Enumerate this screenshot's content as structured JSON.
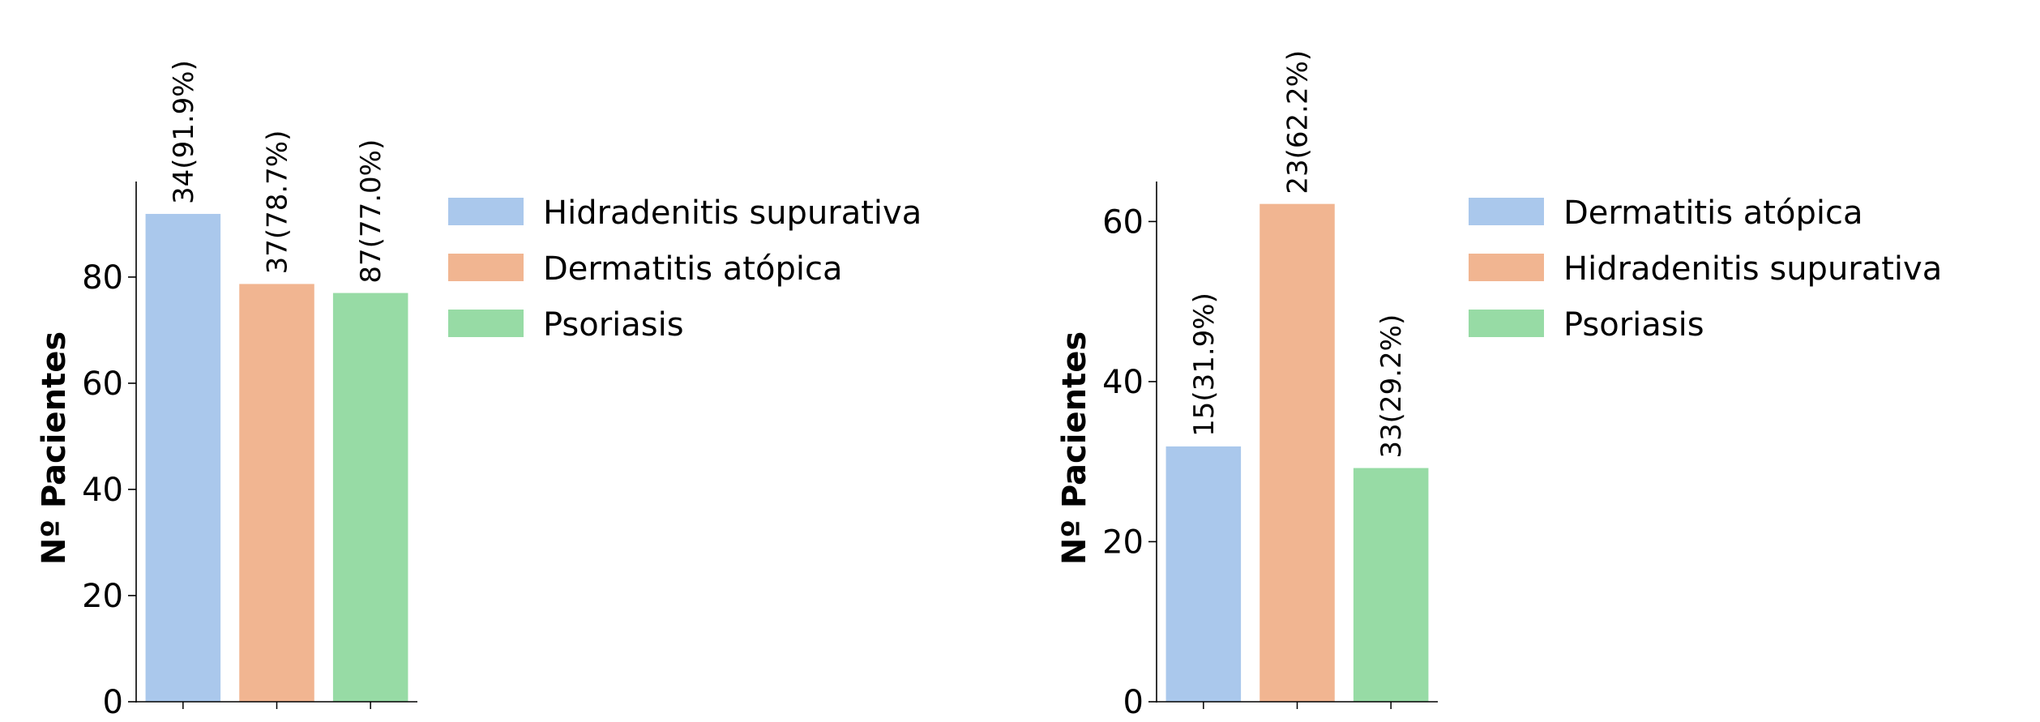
{
  "chart_data": [
    {
      "type": "bar",
      "title": "",
      "xlabel": "",
      "ylabel": "Nº Pacientes",
      "ylim": [
        0,
        98
      ],
      "yticks": [
        0,
        20,
        40,
        60,
        80
      ],
      "grid": false,
      "legend_position": "right",
      "categories": [
        "Hidradenitis supurativa",
        "Dermatitis atópica",
        "Psoriasis"
      ],
      "values": [
        91.9,
        78.7,
        77.0
      ],
      "bar_labels": [
        "34(91.9%)",
        "37(78.7%)",
        "87(77.0%)"
      ],
      "colors": [
        "#aac8ec",
        "#f1b591",
        "#97dba5"
      ],
      "legend": [
        {
          "label": "Hidradenitis supurativa",
          "color": "#aac8ec"
        },
        {
          "label": "Dermatitis atópica",
          "color": "#f1b591"
        },
        {
          "label": "Psoriasis",
          "color": "#97dba5"
        }
      ]
    },
    {
      "type": "bar",
      "title": "",
      "xlabel": "",
      "ylabel": "Nº Pacientes",
      "ylim": [
        0,
        65
      ],
      "yticks": [
        0,
        20,
        40,
        60
      ],
      "grid": false,
      "legend_position": "right",
      "categories": [
        "Dermatitis atópica",
        "Hidradenitis supurativa",
        "Psoriasis"
      ],
      "values": [
        31.9,
        62.2,
        29.2
      ],
      "bar_labels": [
        "15(31.9%)",
        "23(62.2%)",
        "33(29.2%)"
      ],
      "colors": [
        "#aac8ec",
        "#f1b591",
        "#97dba5"
      ],
      "legend": [
        {
          "label": "Dermatitis atópica",
          "color": "#aac8ec"
        },
        {
          "label": "Hidradenitis supurativa",
          "color": "#f1b591"
        },
        {
          "label": "Psoriasis",
          "color": "#97dba5"
        }
      ]
    }
  ]
}
